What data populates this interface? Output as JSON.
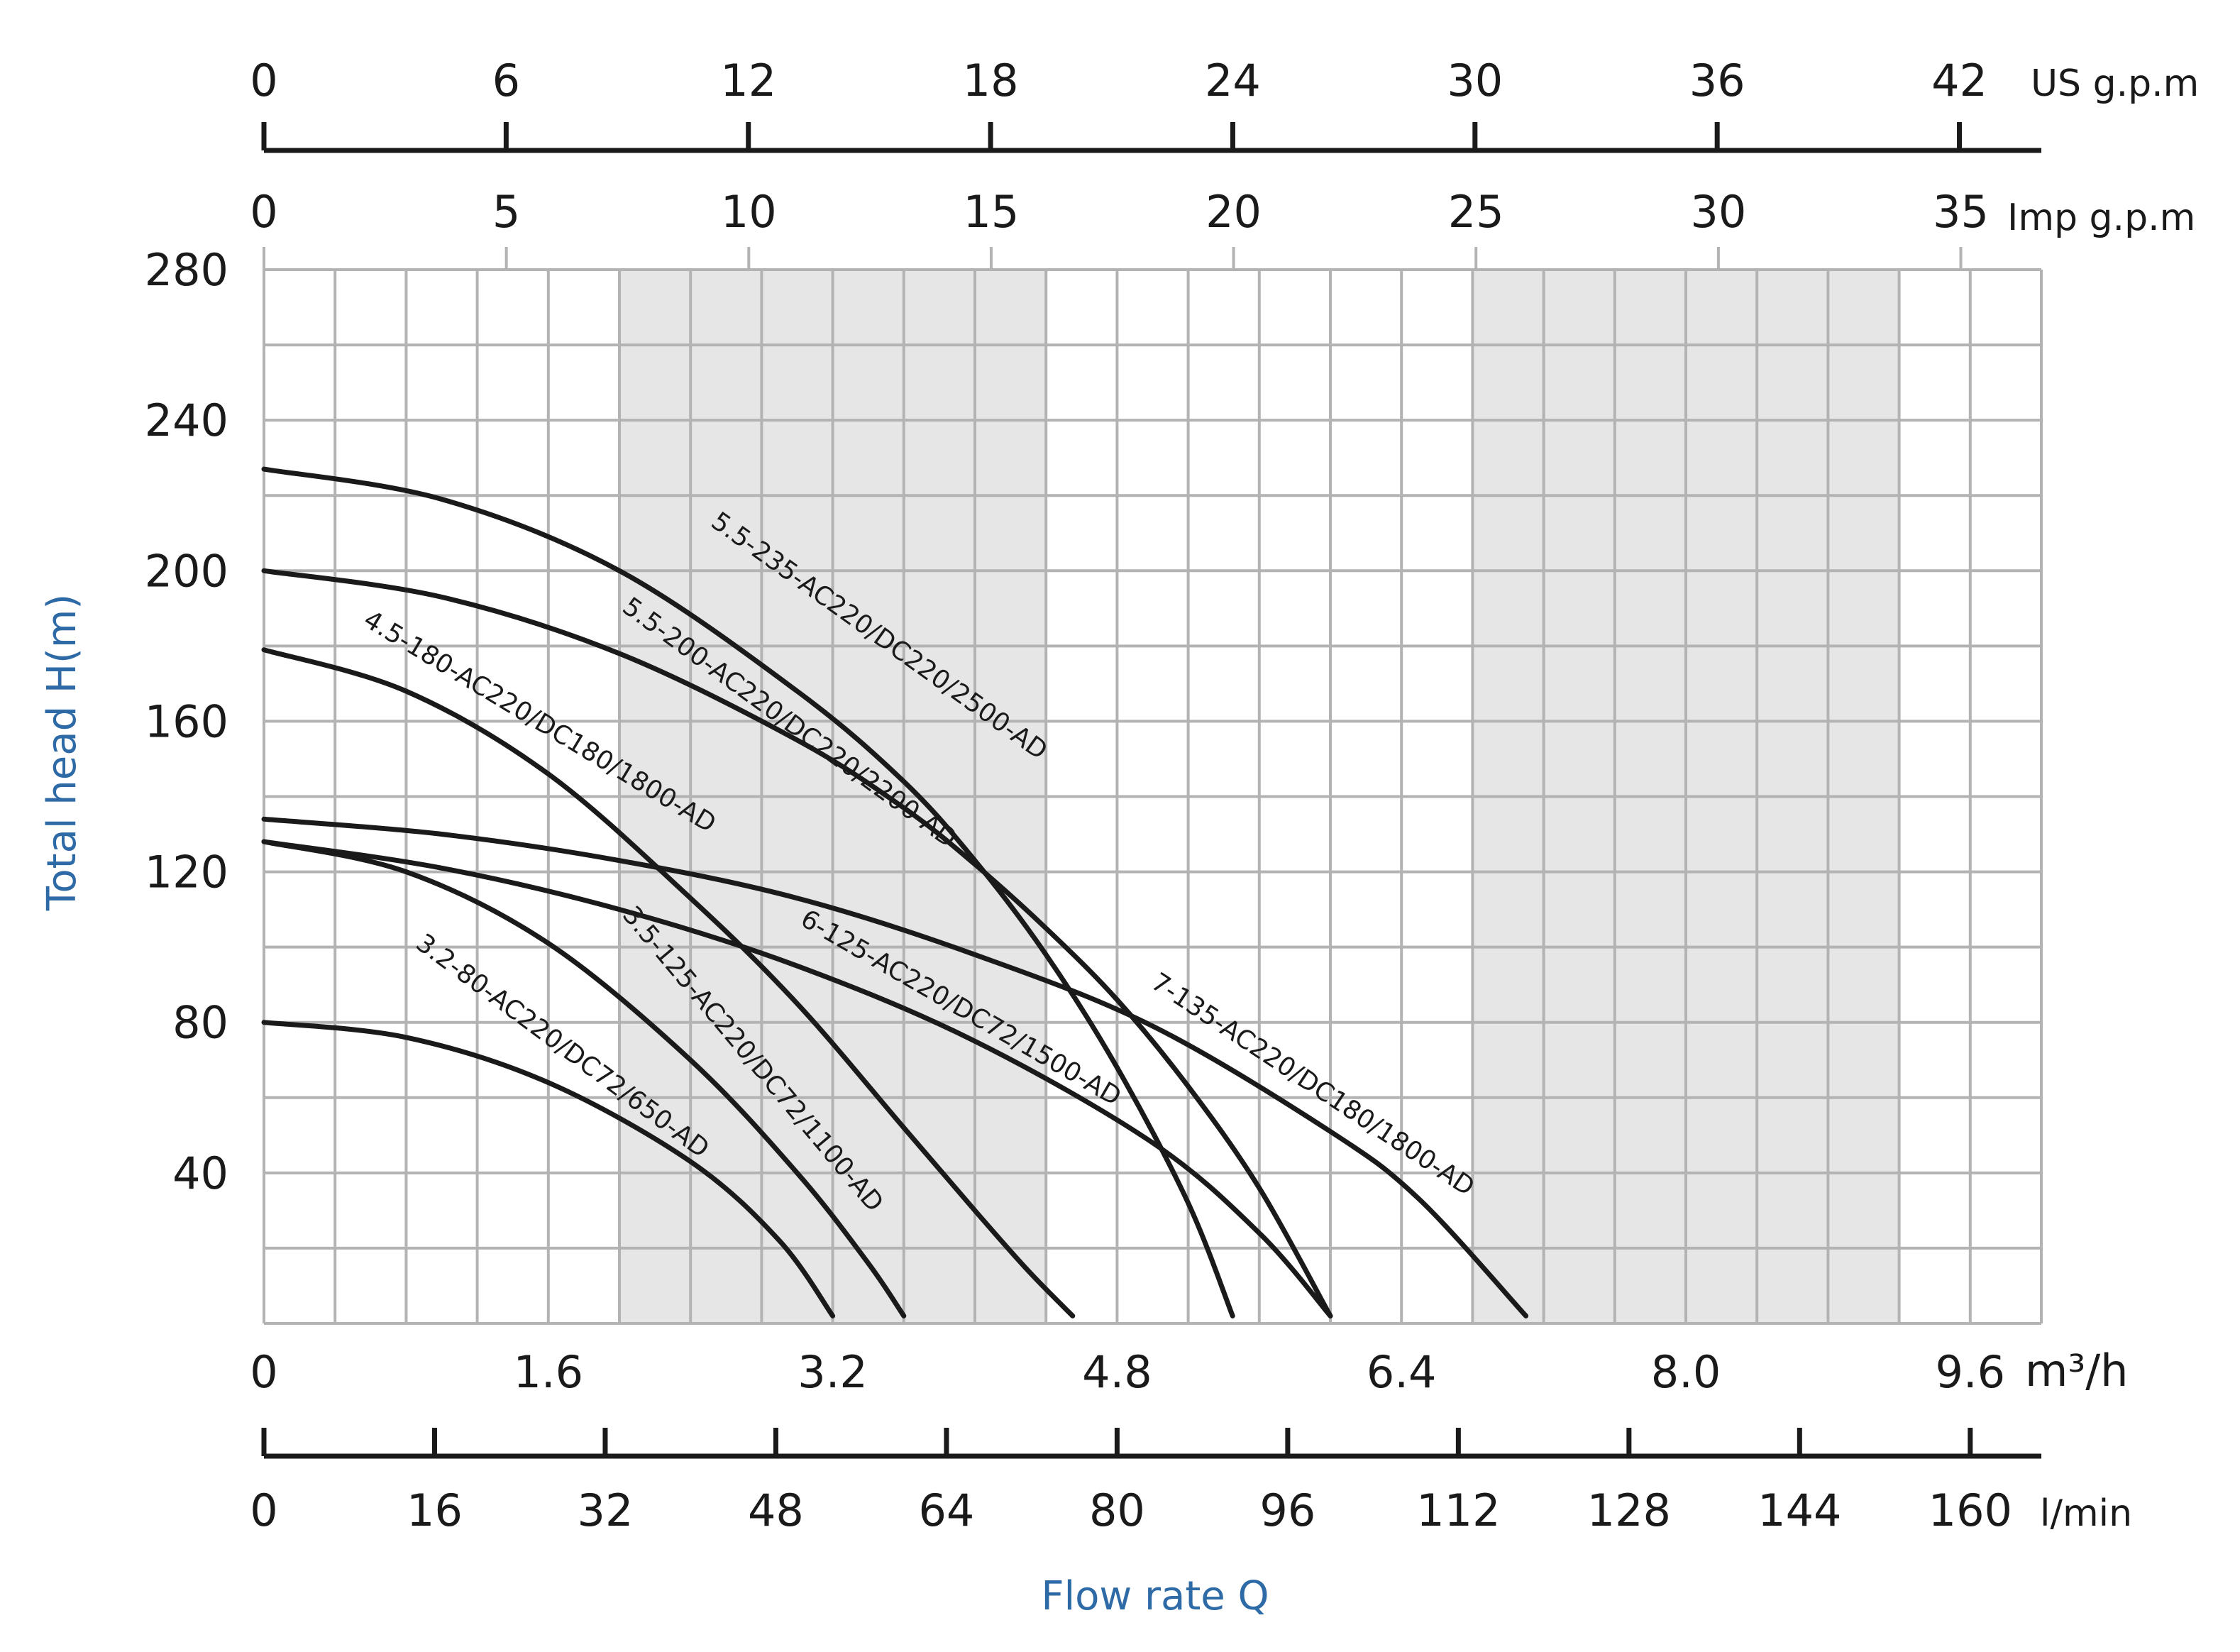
{
  "chart_data": {
    "type": "line",
    "title": "",
    "xlabel": "Flow rate Q",
    "ylabel": "Total head H(m)",
    "xlim": [
      0,
      10.0
    ],
    "ylim": [
      0,
      280
    ],
    "x_unit": "m³/h",
    "y_ticks": [
      "280",
      "240",
      "200",
      "160",
      "120",
      "80",
      "40"
    ],
    "x_ticks_m3h": {
      "unit": "m³/h",
      "values": [
        0,
        1.6,
        3.2,
        4.8,
        6.4,
        8.0,
        9.6
      ],
      "labels": [
        "0",
        "1.6",
        "3.2",
        "4.8",
        "6.4",
        "8.0",
        "9.6"
      ]
    },
    "x_ticks_lmin": {
      "unit": "l/min",
      "values": [
        0,
        16,
        32,
        48,
        64,
        80,
        96,
        112,
        128,
        144,
        160
      ],
      "labels": [
        "0",
        "16",
        "32",
        "48",
        "64",
        "80",
        "96",
        "112",
        "128",
        "144",
        "160"
      ]
    },
    "x_ticks_imp": {
      "unit": "Imp g.p.m",
      "values": [
        0,
        5,
        10,
        15,
        20,
        25,
        30,
        35
      ],
      "labels": [
        "0",
        "5",
        "10",
        "15",
        "20",
        "25",
        "30",
        "35"
      ]
    },
    "x_ticks_us": {
      "unit": "US g.p.m",
      "values": [
        0,
        6,
        12,
        18,
        24,
        30,
        36,
        42
      ],
      "labels": [
        "0",
        "6",
        "12",
        "18",
        "24",
        "30",
        "36",
        "42"
      ]
    },
    "shaded_bands": [
      [
        2.0,
        4.4
      ],
      [
        6.8,
        9.2
      ]
    ],
    "grid": true,
    "series": [
      {
        "name": "5.5-235-AC220/DC220/2500-AD",
        "x": [
          0,
          1.0,
          2.0,
          3.0,
          3.6,
          4.0,
          4.4,
          4.8,
          5.2,
          5.45
        ],
        "y": [
          227,
          219,
          200,
          168,
          144,
          123,
          98,
          68,
          32,
          2
        ]
      },
      {
        "name": "5.5-200-AC220/DC220/2200-AD",
        "x": [
          0,
          1.0,
          2.0,
          3.0,
          3.6,
          4.0,
          4.4,
          4.8,
          5.2,
          5.6,
          6.0
        ],
        "y": [
          200,
          193,
          178,
          155,
          137,
          122,
          105,
          86,
          63,
          36,
          2
        ]
      },
      {
        "name": "4.5-180-AC220/DC180/1800-AD",
        "x": [
          0,
          0.8,
          1.6,
          2.4,
          3.0,
          3.6,
          4.0,
          4.3,
          4.55
        ],
        "y": [
          179,
          168,
          146,
          113,
          85,
          52,
          30,
          14,
          2
        ]
      },
      {
        "name": "7-135-AC220/DC180/1800-AD",
        "x": [
          0,
          1.0,
          2.0,
          3.0,
          4.0,
          5.0,
          6.0,
          6.5,
          7.1
        ],
        "y": [
          134,
          130,
          123,
          113,
          98,
          79,
          51,
          33,
          2
        ]
      },
      {
        "name": "6-125-AC220/DC72/1500-AD",
        "x": [
          0,
          1.0,
          2.0,
          3.0,
          4.0,
          5.0,
          5.6,
          6.0
        ],
        "y": [
          128,
          121,
          110,
          95,
          75,
          48,
          24,
          2
        ]
      },
      {
        "name": "3.5-125-AC220/DC72/1100-AD",
        "x": [
          0,
          0.8,
          1.6,
          2.4,
          3.0,
          3.4,
          3.6
        ],
        "y": [
          128,
          120,
          101,
          70,
          40,
          16,
          2
        ]
      },
      {
        "name": "3.2-80-AC220/DC72/650-AD",
        "x": [
          0,
          0.8,
          1.6,
          2.4,
          2.9,
          3.2
        ],
        "y": [
          80,
          76,
          64,
          43,
          22,
          2
        ]
      }
    ]
  }
}
